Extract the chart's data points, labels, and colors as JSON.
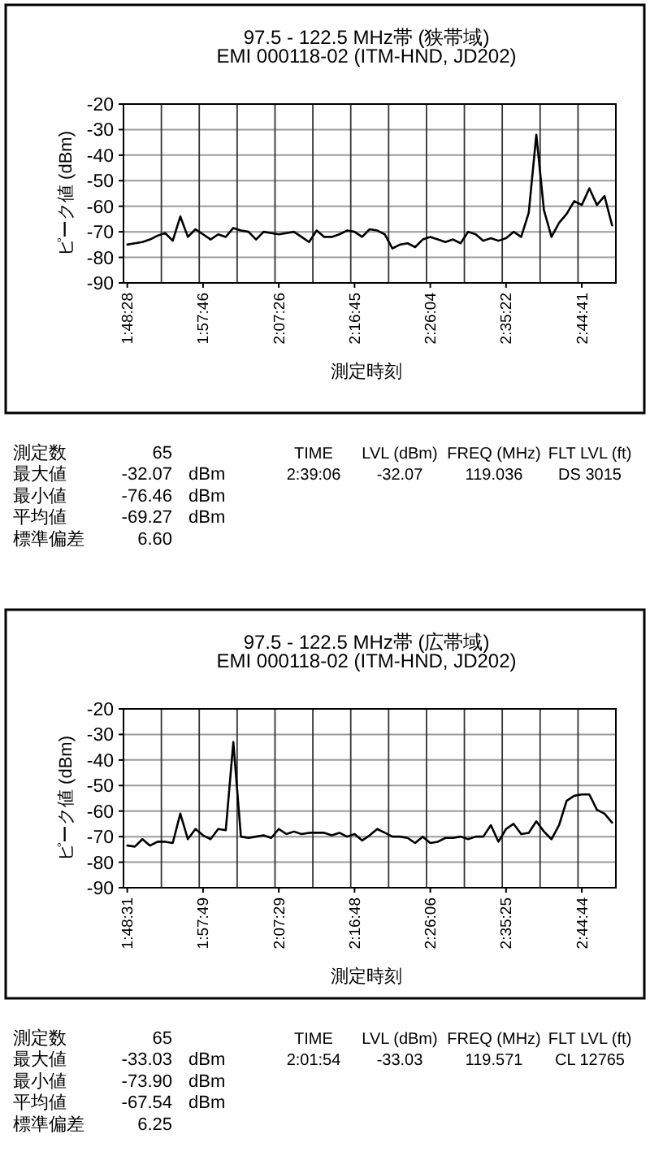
{
  "chart_data": [
    {
      "type": "line",
      "title": "97.5 - 122.5 MHz帯 (狭帯域)",
      "subtitle": "EMI 000118-02 (ITM-HND, JD202)",
      "xlabel": "測定時刻",
      "ylabel": "ピーク値 (dBm)",
      "categories": [
        "1:48:28",
        null,
        null,
        null,
        null,
        null,
        null,
        null,
        null,
        null,
        "1:57:46",
        null,
        null,
        null,
        null,
        null,
        null,
        null,
        null,
        null,
        "2:07:26",
        null,
        null,
        null,
        null,
        null,
        null,
        null,
        null,
        null,
        "2:16:45",
        null,
        null,
        null,
        null,
        null,
        null,
        null,
        null,
        null,
        "2:26:04",
        null,
        null,
        null,
        null,
        null,
        null,
        null,
        null,
        null,
        "2:35:22",
        null,
        null,
        null,
        null,
        null,
        null,
        null,
        null,
        null,
        "2:44:41",
        null,
        null,
        null,
        null
      ],
      "values": [
        -75,
        -74.5,
        -74,
        -73,
        -71.5,
        -70.5,
        -73.5,
        -64,
        -72,
        -69,
        -71,
        -73,
        -71,
        -72,
        -68.5,
        -69.5,
        -70,
        -73,
        -70,
        -70.5,
        -71,
        -70.5,
        -70,
        -72,
        -74,
        -69.5,
        -72,
        -72,
        -71,
        -69.5,
        -70,
        -72,
        -69,
        -69.5,
        -71,
        -76.5,
        -75,
        -74.5,
        -76,
        -73,
        -72,
        -73,
        -74,
        -73,
        -74.5,
        -70,
        -71,
        -73.5,
        -72.5,
        -73.5,
        -72.5,
        -70,
        -72,
        -62.5,
        -32,
        -61.5,
        -72,
        -66.5,
        -63,
        -58,
        -59.5,
        -53,
        -59.5,
        -56,
        -67.5
      ],
      "color": "#000000",
      "ylim": [
        -90,
        -20
      ],
      "yticks": [
        -90,
        -80,
        -70,
        -60,
        -50,
        -40,
        -30,
        -20
      ],
      "grid": true,
      "annotations": [
        "測定数",
        "65",
        "最大値",
        "-32.07",
        "dBm",
        "最小値",
        "-76.46",
        "dBm",
        "平均値",
        "-69.27",
        "dBm",
        "標準偏差",
        "6.60",
        "TIME",
        "LVL (dBm)",
        "FREQ (MHz)",
        "FLT LVL (ft)",
        "2:39:06",
        "-32.07",
        "119.036",
        "DS 3015"
      ]
    },
    {
      "type": "line",
      "title": "97.5 - 122.5 MHz帯 (広帯域)",
      "subtitle": "EMI 000118-02 (ITM-HND, JD202)",
      "xlabel": "測定時刻",
      "ylabel": "ピーク値 (dBm)",
      "categories": [
        "1:48:31",
        null,
        null,
        null,
        null,
        null,
        null,
        null,
        null,
        null,
        "1:57:49",
        null,
        null,
        null,
        null,
        null,
        null,
        null,
        null,
        null,
        "2:07:29",
        null,
        null,
        null,
        null,
        null,
        null,
        null,
        null,
        null,
        "2:16:48",
        null,
        null,
        null,
        null,
        null,
        null,
        null,
        null,
        null,
        "2:26:06",
        null,
        null,
        null,
        null,
        null,
        null,
        null,
        null,
        null,
        "2:35:25",
        null,
        null,
        null,
        null,
        null,
        null,
        null,
        null,
        null,
        "2:44:44",
        null,
        null,
        null,
        null
      ],
      "values": [
        -73.5,
        -73.9,
        -71,
        -73.5,
        -72,
        -72,
        -72.5,
        -61,
        -71,
        -67,
        -69.5,
        -71,
        -67,
        -67.5,
        -33,
        -70,
        -70.5,
        -70,
        -69.5,
        -70.5,
        -67,
        -69,
        -68,
        -69,
        -68.5,
        -68.5,
        -68.5,
        -69.5,
        -68.5,
        -70,
        -69,
        -71.5,
        -69.5,
        -67,
        -68.5,
        -70,
        -70,
        -70.5,
        -72.5,
        -70,
        -72.5,
        -72,
        -70.5,
        -70.5,
        -70,
        -71,
        -70,
        -70,
        -65.5,
        -72,
        -67,
        -65,
        -69,
        -68.5,
        -64,
        -68,
        -71,
        -65.5,
        -56,
        -54,
        -53.5,
        -53.5,
        -59.5,
        -61,
        -64.5
      ],
      "color": "#000000",
      "ylim": [
        -90,
        -20
      ],
      "yticks": [
        -90,
        -80,
        -70,
        -60,
        -50,
        -40,
        -30,
        -20
      ],
      "grid": true,
      "annotations": [
        "測定数",
        "65",
        "最大値",
        "-33.03",
        "dBm",
        "最小値",
        "-73.90",
        "dBm",
        "平均値",
        "-67.54",
        "dBm",
        "標準偏差",
        "6.25",
        "TIME",
        "LVL (dBm)",
        "FREQ (MHz)",
        "FLT LVL (ft)",
        "2:01:54",
        "-33.03",
        "119.571",
        "CL 12765"
      ]
    }
  ]
}
